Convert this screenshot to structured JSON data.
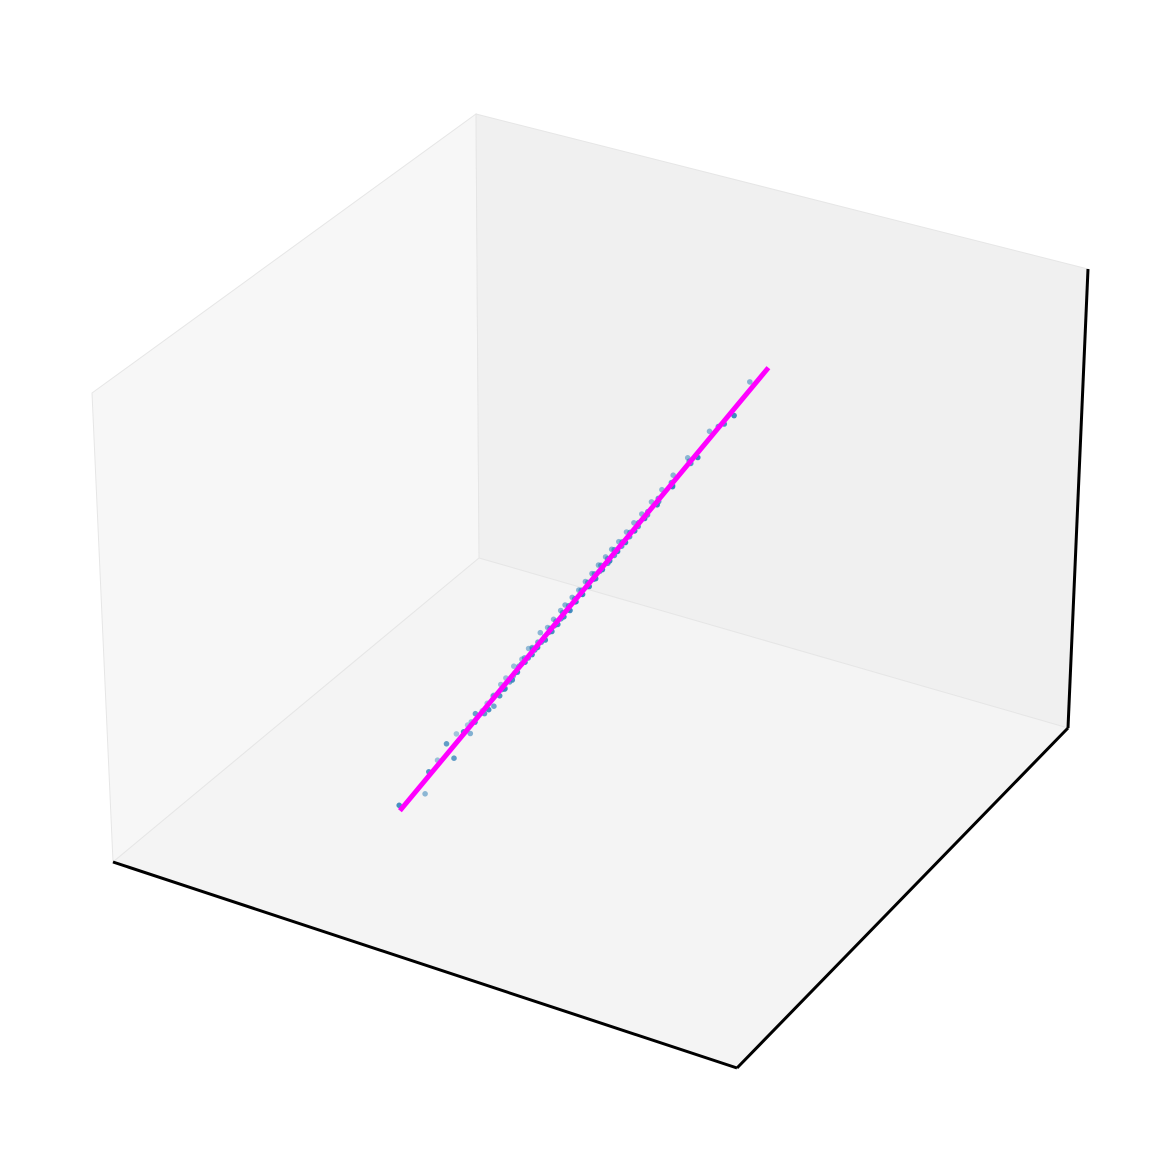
{
  "chart_data": {
    "type": "scatter",
    "projection": "3d",
    "title": "",
    "xlabel": "",
    "ylabel": "",
    "zlabel": "",
    "grid": false,
    "ticks": false,
    "legend": "none",
    "colors": {
      "points": "#2f7fb8",
      "fit_line": "#ff00ff",
      "pane_left": "#f7f7f7",
      "pane_back": "#f0f0f0",
      "pane_floor": "#f4f4f4",
      "axis_line": "#000000"
    },
    "series": [
      {
        "kind": "scatter",
        "points": [
          [
            -2.49,
            -2.64,
            -2.61
          ],
          [
            -2.36,
            -2.19,
            -2.32
          ],
          [
            -2.21,
            -1.97,
            -1.79
          ],
          [
            -2.08,
            -2.18,
            -2.16
          ],
          [
            -1.95,
            -1.67,
            -1.42
          ],
          [
            -1.86,
            -1.89,
            -1.74
          ],
          [
            -1.8,
            -1.5,
            -1.31
          ],
          [
            -1.75,
            -1.8,
            -2.01
          ],
          [
            -1.69,
            -1.46,
            -1.32
          ],
          [
            -1.63,
            -1.51,
            -1.57
          ],
          [
            -1.58,
            -1.28,
            -1.14
          ],
          [
            -1.53,
            -1.66,
            -1.68
          ],
          [
            -1.48,
            -1.21,
            -1.06
          ],
          [
            -1.44,
            -1.45,
            -1.36
          ],
          [
            -1.4,
            -1.12,
            -0.96
          ],
          [
            -1.36,
            -1.49,
            -1.57
          ],
          [
            -1.32,
            -1.13,
            -1.01
          ],
          [
            -1.28,
            -1.33,
            -1.42
          ],
          [
            -1.24,
            -1.01,
            -0.84
          ],
          [
            -1.21,
            -1.17,
            -1.28
          ],
          [
            -1.17,
            -0.93,
            -0.75
          ],
          [
            -1.14,
            -1.29,
            -1.44
          ],
          [
            -1.11,
            -0.97,
            -0.98
          ],
          [
            -1.07,
            -1.05,
            -1.06
          ],
          [
            -1.04,
            -0.81,
            -0.6
          ],
          [
            -1.01,
            -1.11,
            -1.23
          ],
          [
            -0.98,
            -0.85,
            -0.82
          ],
          [
            -0.95,
            -0.93,
            -0.97
          ],
          [
            -0.92,
            -0.69,
            -0.52
          ],
          [
            -0.89,
            -1.05,
            -1.18
          ],
          [
            -0.86,
            -0.77,
            -0.71
          ],
          [
            -0.83,
            -0.86,
            -0.88
          ],
          [
            -0.8,
            -0.59,
            -0.39
          ],
          [
            -0.78,
            -0.93,
            -1.06
          ],
          [
            -0.75,
            -0.69,
            -0.62
          ],
          [
            -0.72,
            -0.76,
            -0.77
          ],
          [
            -0.7,
            -0.55,
            -0.45
          ],
          [
            -0.67,
            -0.86,
            -0.98
          ],
          [
            -0.64,
            -0.57,
            -0.48
          ],
          [
            -0.62,
            -0.66,
            -0.7
          ],
          [
            -0.59,
            -0.42,
            -0.21
          ],
          [
            -0.57,
            -0.74,
            -0.84
          ],
          [
            -0.54,
            -0.49,
            -0.43
          ],
          [
            -0.52,
            -0.56,
            -0.6
          ],
          [
            -0.49,
            -0.31,
            -0.15
          ],
          [
            -0.47,
            -0.63,
            -0.74
          ],
          [
            -0.44,
            -0.39,
            -0.37
          ],
          [
            -0.42,
            -0.46,
            -0.5
          ],
          [
            -0.39,
            -0.22,
            -0.05
          ],
          [
            -0.37,
            -0.55,
            -0.66
          ],
          [
            -0.34,
            -0.31,
            -0.27
          ],
          [
            -0.32,
            -0.34,
            -0.36
          ],
          [
            -0.29,
            -0.11,
            0.07
          ],
          [
            -0.27,
            -0.43,
            -0.56
          ],
          [
            -0.25,
            -0.22,
            -0.18
          ],
          [
            -0.22,
            -0.26,
            -0.29
          ],
          [
            -0.2,
            -0.05,
            0.12
          ],
          [
            -0.17,
            -0.33,
            -0.45
          ],
          [
            -0.15,
            -0.12,
            -0.07
          ],
          [
            -0.13,
            -0.16,
            -0.2
          ],
          [
            -0.1,
            0.06,
            0.22
          ],
          [
            -0.08,
            -0.24,
            -0.36
          ],
          [
            -0.05,
            -0.03,
            0.01
          ],
          [
            -0.03,
            -0.05,
            -0.08
          ],
          [
            0.0,
            0.16,
            0.31
          ],
          [
            0.02,
            -0.15,
            -0.27
          ],
          [
            0.05,
            0.06,
            0.09
          ],
          [
            0.07,
            0.05,
            0.02
          ],
          [
            0.1,
            0.26,
            0.42
          ],
          [
            0.12,
            -0.06,
            -0.2
          ],
          [
            0.15,
            0.16,
            0.2
          ],
          [
            0.17,
            0.15,
            0.12
          ],
          [
            0.2,
            0.36,
            0.52
          ],
          [
            0.22,
            0.03,
            -0.09
          ],
          [
            0.25,
            0.26,
            0.3
          ],
          [
            0.27,
            0.24,
            0.21
          ],
          [
            0.3,
            0.46,
            0.63
          ],
          [
            0.32,
            0.13,
            0.0
          ],
          [
            0.35,
            0.36,
            0.41
          ],
          [
            0.37,
            0.34,
            0.3
          ],
          [
            0.4,
            0.57,
            0.74
          ],
          [
            0.42,
            0.23,
            0.1
          ],
          [
            0.45,
            0.46,
            0.52
          ],
          [
            0.47,
            0.43,
            0.4
          ],
          [
            0.5,
            0.66,
            0.83
          ],
          [
            0.52,
            0.33,
            0.2
          ],
          [
            0.55,
            0.56,
            0.6
          ],
          [
            0.58,
            0.55,
            0.5
          ],
          [
            0.6,
            0.77,
            0.93
          ],
          [
            0.63,
            0.43,
            0.31
          ],
          [
            0.66,
            0.66,
            0.71
          ],
          [
            0.68,
            0.65,
            0.6
          ],
          [
            0.71,
            0.89,
            1.06
          ],
          [
            0.74,
            0.54,
            0.42
          ],
          [
            0.77,
            0.78,
            0.81
          ],
          [
            0.8,
            0.76,
            0.71
          ],
          [
            0.83,
            1.0,
            1.17
          ],
          [
            0.86,
            0.66,
            0.54
          ],
          [
            0.89,
            0.9,
            0.93
          ],
          [
            0.92,
            0.88,
            0.83
          ],
          [
            0.95,
            1.12,
            1.28
          ],
          [
            0.98,
            0.78,
            0.65
          ],
          [
            1.02,
            1.03,
            1.05
          ],
          [
            1.05,
            1.01,
            0.96
          ],
          [
            1.09,
            1.27,
            1.44
          ],
          [
            1.12,
            0.92,
            0.8
          ],
          [
            1.16,
            1.17,
            1.19
          ],
          [
            1.2,
            1.15,
            1.1
          ],
          [
            1.24,
            1.43,
            1.6
          ],
          [
            1.28,
            1.07,
            0.95
          ],
          [
            1.32,
            1.33,
            1.36
          ],
          [
            1.37,
            1.32,
            1.27
          ],
          [
            1.42,
            1.6,
            1.78
          ],
          [
            1.47,
            1.26,
            1.12
          ],
          [
            1.52,
            1.53,
            1.56
          ],
          [
            1.58,
            1.53,
            1.47
          ],
          [
            1.64,
            1.82,
            2.0
          ],
          [
            1.71,
            1.49,
            1.34
          ],
          [
            1.79,
            1.8,
            1.83
          ],
          [
            1.88,
            1.8,
            1.73
          ],
          [
            1.98,
            2.15,
            2.33
          ],
          [
            2.1,
            1.87,
            1.7
          ],
          [
            2.24,
            2.24,
            2.26
          ],
          [
            2.42,
            2.3,
            2.2
          ],
          [
            2.6,
            2.76,
            2.95
          ],
          [
            2.62,
            2.43,
            2.25
          ]
        ]
      },
      {
        "kind": "line",
        "points": [
          [
            -2.6,
            -2.6,
            -2.6
          ],
          [
            3.0,
            3.0,
            3.0
          ]
        ]
      }
    ]
  }
}
